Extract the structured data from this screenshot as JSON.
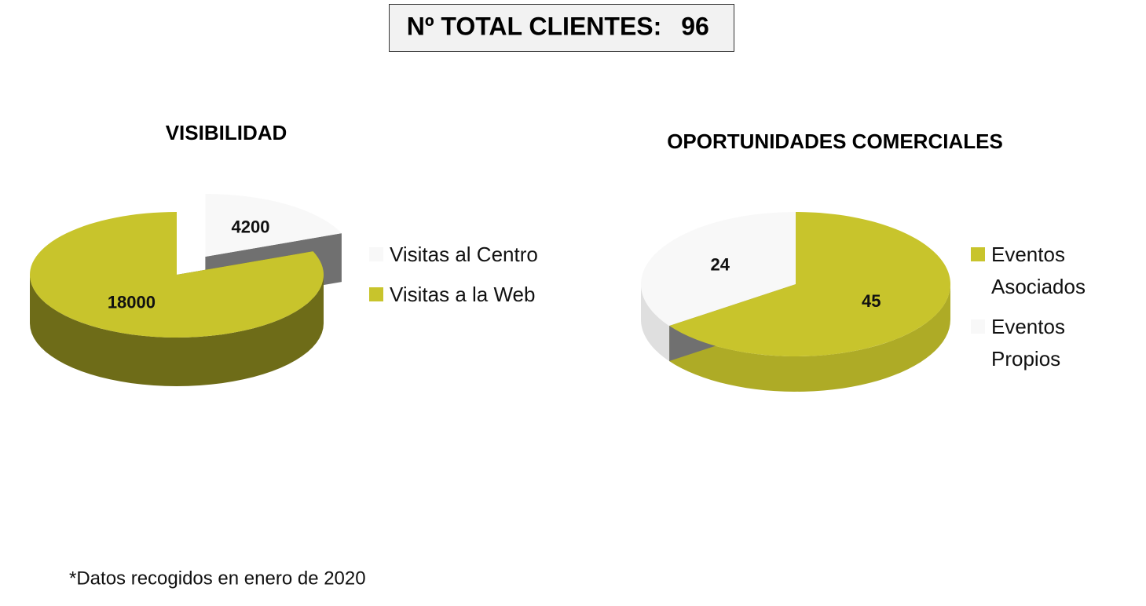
{
  "header": {
    "label": "Nº TOTAL CLIENTES:",
    "value": 96
  },
  "chart_data": [
    {
      "type": "pie3d",
      "title": "VISIBILIDAD",
      "categories": [
        "Visitas al Centro",
        "Visitas a la Web"
      ],
      "values": [
        4200,
        18000
      ],
      "colors": [
        "#f8f8f8",
        "#c8c42c"
      ]
    },
    {
      "type": "pie3d",
      "title": "OPORTUNIDADES COMERCIALES",
      "categories": [
        "Eventos Asociados",
        "Eventos Propios"
      ],
      "values": [
        45,
        24
      ],
      "colors": [
        "#c8c42c",
        "#f8f8f8"
      ]
    }
  ],
  "footnote": "*Datos recogidos en enero de 2020"
}
